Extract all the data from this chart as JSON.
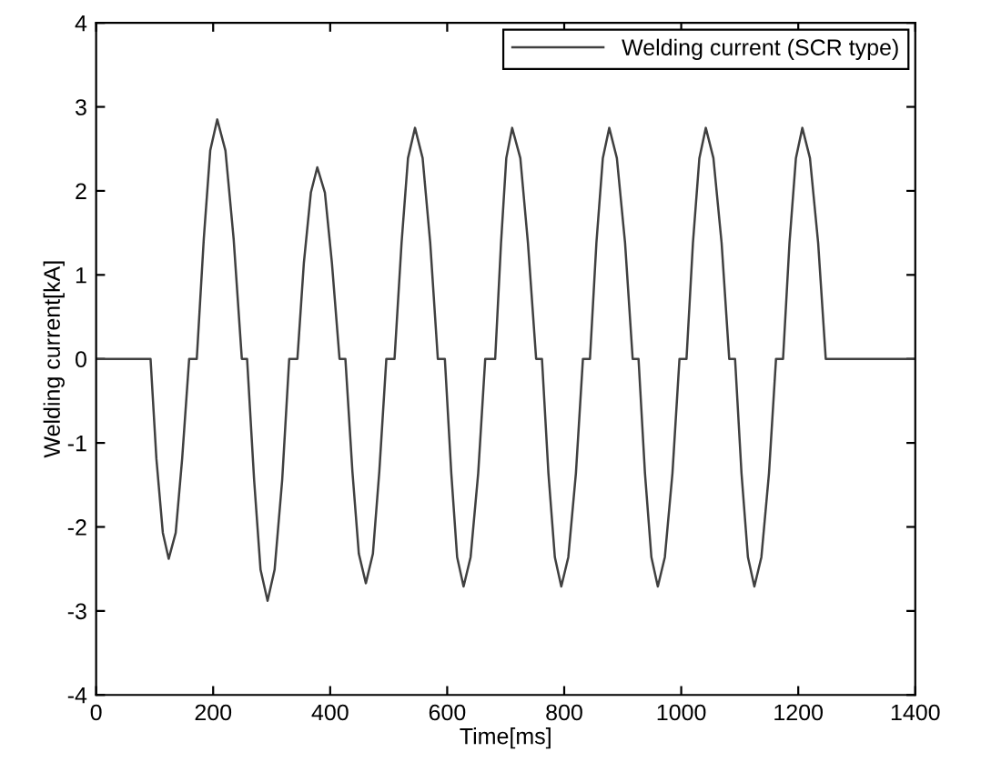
{
  "chart_data": {
    "type": "line",
    "xlabel": "Time[ms]",
    "ylabel": "Welding current[kA]",
    "xlim": [
      0,
      1400
    ],
    "ylim": [
      -4,
      4
    ],
    "xticks": [
      0,
      200,
      400,
      600,
      800,
      1000,
      1200,
      1400
    ],
    "yticks": [
      -4,
      -3,
      -2,
      -1,
      0,
      1,
      2,
      3,
      4
    ],
    "grid": false,
    "legend": "top right",
    "marker": "none",
    "line_style": "solid",
    "series": [
      {
        "name": "Welding current (SCR type)",
        "color": "#404040",
        "x": [
          0,
          93,
          103,
          114,
          124,
          136,
          147,
          159,
          172,
          184,
          195,
          207,
          221,
          235,
          249,
          258,
          270,
          281,
          293,
          305,
          318,
          330,
          344,
          355,
          367,
          378,
          391,
          403,
          416,
          426,
          438,
          449,
          461,
          473,
          484,
          496,
          510,
          522,
          533,
          545,
          558,
          571,
          584,
          596,
          607,
          617,
          628,
          640,
          653,
          665,
          682,
          692,
          701,
          711,
          725,
          738,
          752,
          762,
          773,
          784,
          795,
          807,
          820,
          832,
          844,
          855,
          866,
          877,
          890,
          904,
          917,
          927,
          938,
          949,
          960,
          972,
          985,
          997,
          1009,
          1020,
          1031,
          1042,
          1055,
          1069,
          1082,
          1092,
          1103,
          1114,
          1125,
          1137,
          1150,
          1162,
          1174,
          1185,
          1196,
          1207,
          1220,
          1234,
          1247,
          1400
        ],
        "values": [
          0,
          0,
          -1.19,
          -2.07,
          -2.38,
          -2.07,
          -1.19,
          0,
          0,
          1.43,
          2.48,
          2.85,
          2.48,
          1.43,
          0,
          0,
          -1.44,
          -2.51,
          -2.88,
          -2.51,
          -1.44,
          0,
          0,
          1.14,
          1.98,
          2.28,
          1.98,
          1.14,
          0,
          0,
          -1.34,
          -2.32,
          -2.67,
          -2.32,
          -1.34,
          0,
          0,
          1.38,
          2.39,
          2.75,
          2.39,
          1.38,
          0,
          0,
          -1.36,
          -2.36,
          -2.71,
          -2.36,
          -1.36,
          0,
          0,
          1.38,
          2.39,
          2.75,
          2.39,
          1.38,
          0,
          0,
          -1.36,
          -2.36,
          -2.71,
          -2.36,
          -1.36,
          0,
          0,
          1.38,
          2.39,
          2.75,
          2.39,
          1.38,
          0,
          0,
          -1.36,
          -2.36,
          -2.71,
          -2.36,
          -1.36,
          0,
          0,
          1.38,
          2.39,
          2.75,
          2.39,
          1.38,
          0,
          0,
          -1.36,
          -2.36,
          -2.71,
          -2.36,
          -1.36,
          0,
          0,
          1.38,
          2.39,
          2.75,
          2.39,
          1.38,
          0,
          0
        ]
      }
    ]
  }
}
